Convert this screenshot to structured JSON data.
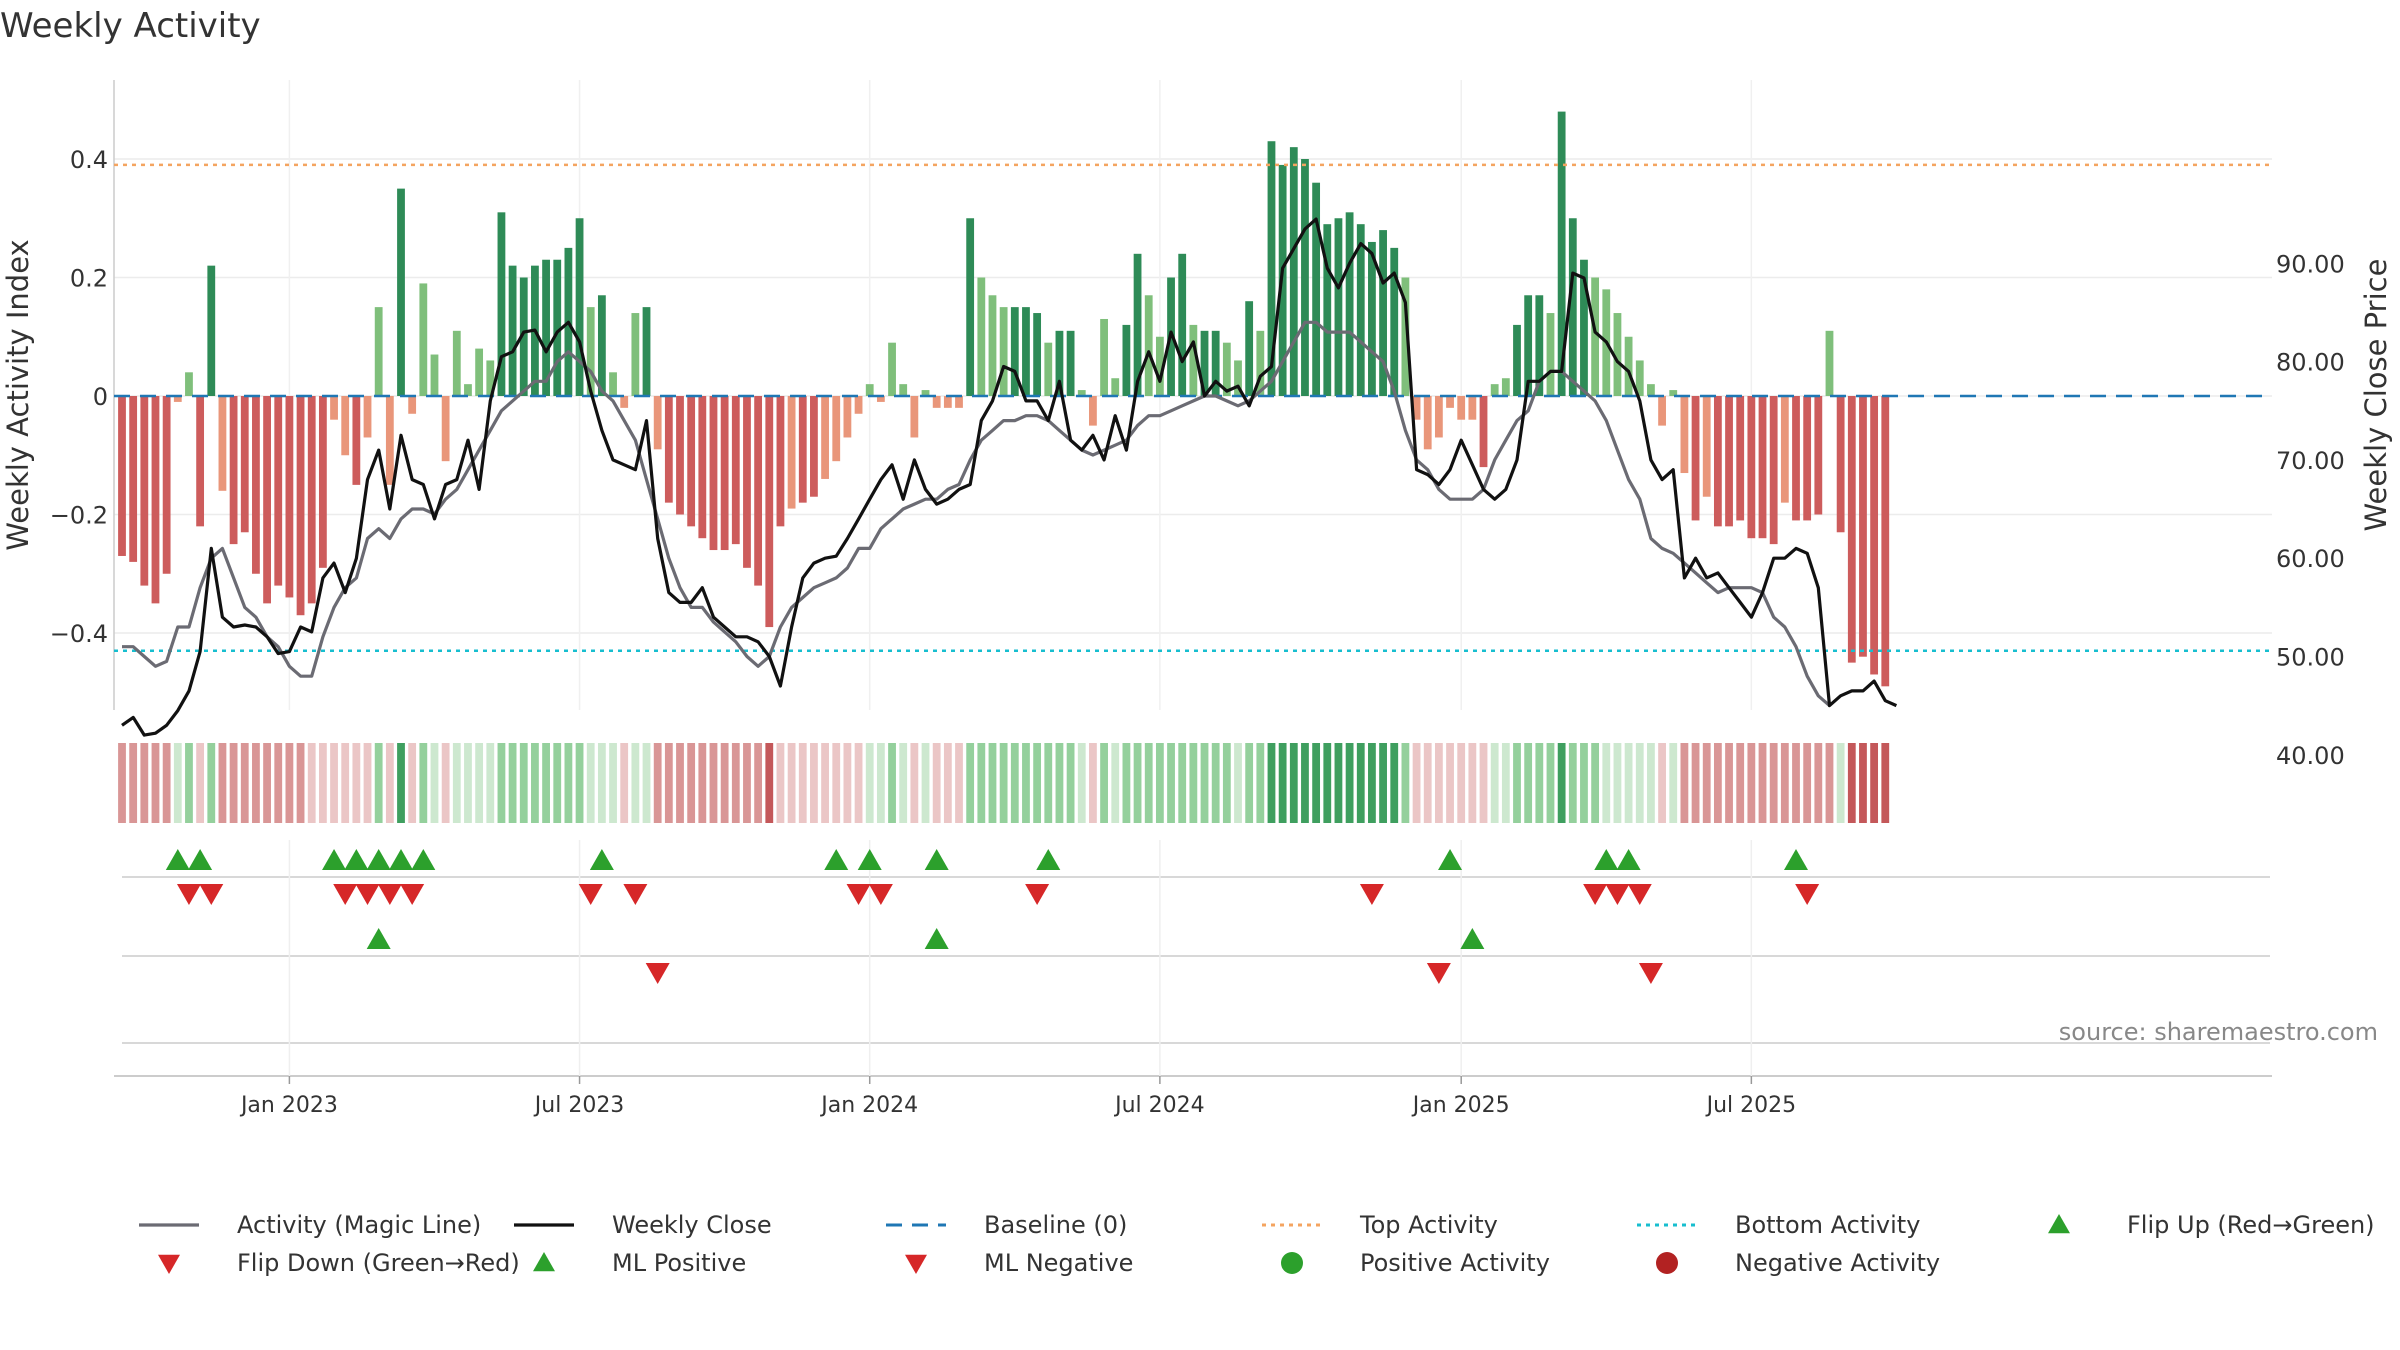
{
  "chart_data": {
    "type": "bar",
    "title": "Weekly Activity",
    "ylabel_left": "Weekly Activity Index",
    "ylabel_right": "Weekly Close Price",
    "source": "source: sharemaestro.com",
    "ylim_left": [
      -0.53,
      0.53
    ],
    "ylim_right": [
      36,
      96
    ],
    "yticks_left": [
      {
        "value": 0.4,
        "label": "0.4"
      },
      {
        "value": 0.2,
        "label": "0.2"
      },
      {
        "value": 0,
        "label": "0"
      },
      {
        "value": -0.2,
        "label": "−0.2"
      },
      {
        "value": -0.4,
        "label": "−0.4"
      }
    ],
    "yticks_right": [
      {
        "value": 90,
        "label": "90.00"
      },
      {
        "value": 80,
        "label": "80.00"
      },
      {
        "value": 70,
        "label": "70.00"
      },
      {
        "value": 60,
        "label": "60.00"
      },
      {
        "value": 50,
        "label": "50.00"
      },
      {
        "value": 40,
        "label": "40.00"
      }
    ],
    "xticks": [
      {
        "index": 15,
        "label": "Jan 2023"
      },
      {
        "index": 41,
        "label": "Jul 2023"
      },
      {
        "index": 67,
        "label": "Jan 2024"
      },
      {
        "index": 93,
        "label": "Jul 2024"
      },
      {
        "index": 120,
        "label": "Jan 2025"
      },
      {
        "index": 146,
        "label": "Jul 2025"
      }
    ],
    "top_activity": 0.39,
    "bottom_activity": -0.43,
    "colors": {
      "strong_green": "#2e8b57",
      "light_green": "#7fbf7b",
      "strong_red": "#cd5c5c",
      "light_red": "#e9967a",
      "magic_line": "#6b6b73",
      "close_line": "#111111",
      "baseline": "#1f77b4",
      "top_line": "#f4a460",
      "bottom_line": "#17becf",
      "up_marker": "#2ca02c",
      "down_marker": "#d62728"
    },
    "activity": [
      -0.27,
      -0.28,
      -0.32,
      -0.35,
      -0.3,
      -0.01,
      0.04,
      -0.22,
      0.22,
      -0.16,
      -0.25,
      -0.23,
      -0.3,
      -0.35,
      -0.32,
      -0.34,
      -0.37,
      -0.35,
      -0.29,
      -0.04,
      -0.1,
      -0.15,
      -0.07,
      0.15,
      -0.15,
      0.35,
      -0.03,
      0.19,
      0.07,
      -0.11,
      0.11,
      0.02,
      0.08,
      0.06,
      0.31,
      0.22,
      0.2,
      0.22,
      0.23,
      0.23,
      0.25,
      0.3,
      0.15,
      0.17,
      0.04,
      -0.02,
      0.14,
      0.15,
      -0.09,
      -0.18,
      -0.2,
      -0.22,
      -0.24,
      -0.26,
      -0.26,
      -0.25,
      -0.29,
      -0.32,
      -0.39,
      -0.22,
      -0.19,
      -0.18,
      -0.17,
      -0.14,
      -0.11,
      -0.07,
      -0.03,
      0.02,
      -0.01,
      0.09,
      0.02,
      -0.07,
      0.01,
      -0.02,
      -0.02,
      -0.02,
      0.3,
      0.2,
      0.17,
      0.15,
      0.15,
      0.15,
      0.14,
      0.09,
      0.11,
      0.11,
      0.01,
      -0.05,
      0.13,
      0.03,
      0.12,
      0.24,
      0.17,
      0.1,
      0.2,
      0.24,
      0.12,
      0.11,
      0.11,
      0.09,
      0.06,
      0.16,
      0.11,
      0.43,
      0.39,
      0.42,
      0.4,
      0.36,
      0.29,
      0.3,
      0.31,
      0.29,
      0.26,
      0.28,
      0.25,
      0.2,
      -0.04,
      -0.09,
      -0.07,
      -0.02,
      -0.04,
      -0.04,
      -0.12,
      0.02,
      0.03,
      0.12,
      0.17,
      0.17,
      0.14,
      0.48,
      0.3,
      0.23,
      0.2,
      0.18,
      0.14,
      0.1,
      0.06,
      0.02,
      -0.05,
      0.01,
      -0.13,
      -0.21,
      -0.17,
      -0.22,
      -0.22,
      -0.21,
      -0.24,
      -0.24,
      -0.25,
      -0.18,
      -0.21,
      -0.21,
      -0.2,
      0.11,
      -0.23,
      -0.45,
      -0.44,
      -0.47,
      -0.49
    ],
    "close": [
      43,
      43.8,
      42,
      42.2,
      43,
      44.5,
      46.5,
      50.5,
      61,
      54,
      53,
      53.2,
      53,
      52,
      50.3,
      50.5,
      53,
      52.5,
      58,
      59.5,
      56.5,
      60,
      68,
      71,
      65,
      72.5,
      68,
      67.5,
      64,
      67.5,
      68,
      72,
      67,
      76,
      80.5,
      81,
      83,
      83.2,
      81,
      83,
      84,
      82,
      77,
      73,
      70,
      69.5,
      69,
      74,
      62,
      56.5,
      55.5,
      55.5,
      57,
      54,
      53,
      52,
      52,
      51.5,
      50,
      47,
      53,
      58,
      59.5,
      60,
      60.2,
      62,
      64,
      66,
      68,
      69.5,
      66,
      70,
      67,
      65.5,
      66,
      67,
      67.5,
      74,
      76,
      79.5,
      79,
      76,
      76,
      74,
      78,
      72,
      71,
      72.5,
      70,
      74.5,
      71,
      78,
      81,
      78,
      83,
      80,
      82,
      76.5,
      78,
      77,
      77.5,
      75.5,
      78.5,
      79.5,
      89.5,
      91.5,
      93.5,
      94.5,
      89.5,
      87.5,
      90,
      92,
      91,
      88,
      89,
      86,
      69,
      68.5,
      67.5,
      69,
      72,
      69.5,
      67,
      66,
      67,
      70,
      78,
      78,
      79,
      79,
      89,
      88.5,
      83,
      82,
      80,
      79,
      76,
      70,
      68,
      69,
      58,
      60,
      58,
      58.5,
      57,
      55.5,
      54,
      56.5,
      60,
      60,
      61,
      60.5,
      57,
      45,
      46,
      46.5,
      46.5,
      47.5,
      45.5,
      45
    ],
    "magic_line": [
      51,
      51,
      50,
      49,
      49.5,
      53,
      53,
      57,
      60,
      61,
      58,
      55,
      54,
      52,
      51,
      49,
      48,
      48,
      52,
      55,
      57,
      58,
      62,
      63,
      62,
      64,
      65,
      65,
      64.5,
      66,
      67,
      69,
      71,
      73,
      75,
      76,
      77,
      78,
      78,
      80,
      81,
      80,
      79,
      77,
      76,
      74,
      72,
      68,
      64,
      60,
      57,
      55,
      55,
      53.5,
      52.5,
      51.5,
      50,
      49,
      50,
      53,
      55,
      56,
      57,
      57.5,
      58,
      59,
      61,
      61,
      63,
      64,
      65,
      65.5,
      66,
      66,
      67,
      67.5,
      70,
      72,
      73,
      74,
      74,
      74.5,
      74.5,
      74,
      73,
      72,
      71,
      70.5,
      71,
      71.5,
      72,
      73.5,
      74.5,
      74.5,
      75,
      75.5,
      76,
      76.5,
      76.5,
      76,
      75.5,
      76,
      77,
      78,
      80,
      82,
      84,
      84,
      83,
      83,
      83,
      82,
      81,
      80,
      77,
      73,
      70,
      69,
      67,
      66,
      66,
      66,
      67,
      70,
      72,
      74,
      75,
      78,
      79,
      79,
      78,
      77,
      76,
      74,
      71,
      68,
      66,
      62,
      61,
      60.5,
      59.5,
      58.5,
      57.5,
      56.5,
      57,
      57,
      57,
      56.5,
      54,
      53,
      51,
      48,
      46,
      45
    ],
    "heat_strip": [
      "R2",
      "R2",
      "R2",
      "R2",
      "R2",
      "G1",
      "G2",
      "R1",
      "G2",
      "R2",
      "R2",
      "R2",
      "R2",
      "R2",
      "R2",
      "R2",
      "R2",
      "R1",
      "R1",
      "R1",
      "R1",
      "R1",
      "R1",
      "G2",
      "R1",
      "G3",
      "R1",
      "G2",
      "G1",
      "R1",
      "G1",
      "G1",
      "G1",
      "G1",
      "G2",
      "G2",
      "G2",
      "G2",
      "G2",
      "G2",
      "G2",
      "G2",
      "G1",
      "G1",
      "G1",
      "R1",
      "G1",
      "G1",
      "R2",
      "R2",
      "R2",
      "R2",
      "R2",
      "R2",
      "R2",
      "R2",
      "R2",
      "R2",
      "R3",
      "R1",
      "R1",
      "R1",
      "R1",
      "R1",
      "R1",
      "R1",
      "R1",
      "G1",
      "G1",
      "G2",
      "G1",
      "R1",
      "G1",
      "R1",
      "R1",
      "R1",
      "G2",
      "G2",
      "G2",
      "G2",
      "G2",
      "G2",
      "G2",
      "G2",
      "G2",
      "G2",
      "G1",
      "R1",
      "G2",
      "G1",
      "G2",
      "G2",
      "G2",
      "G2",
      "G2",
      "G2",
      "G2",
      "G2",
      "G2",
      "G2",
      "G1",
      "G2",
      "G2",
      "G3",
      "G3",
      "G3",
      "G3",
      "G3",
      "G3",
      "G3",
      "G3",
      "G3",
      "G3",
      "G3",
      "G3",
      "G2",
      "R1",
      "R1",
      "R1",
      "R1",
      "R1",
      "R1",
      "R1",
      "G1",
      "G1",
      "G2",
      "G2",
      "G2",
      "G2",
      "G3",
      "G2",
      "G2",
      "G2",
      "G1",
      "G1",
      "G1",
      "G1",
      "G1",
      "R1",
      "G1",
      "R2",
      "R2",
      "R2",
      "R2",
      "R2",
      "R2",
      "R2",
      "R2",
      "R2",
      "R2",
      "R2",
      "R2",
      "R2",
      "R2",
      "G1",
      "R3",
      "R3",
      "R3",
      "R3"
    ],
    "flip_up": [
      5,
      7,
      19,
      21,
      23,
      25,
      27,
      43,
      64,
      67,
      73,
      83,
      119,
      133,
      135,
      150
    ],
    "flip_down": [
      6,
      8,
      20,
      22,
      24,
      26,
      42,
      46,
      66,
      68,
      82,
      112,
      132,
      134,
      136,
      151
    ],
    "ml_positive": [
      23,
      73,
      121
    ],
    "ml_negative": [
      48,
      118,
      137
    ],
    "legend": [
      {
        "key": "magic_line",
        "label": "Activity (Magic Line)"
      },
      {
        "key": "close",
        "label": "Weekly Close"
      },
      {
        "key": "baseline",
        "label": "Baseline (0)"
      },
      {
        "key": "top",
        "label": "Top Activity"
      },
      {
        "key": "bottom",
        "label": "Bottom Activity"
      },
      {
        "key": "flip_up",
        "label": "Flip Up (Red→Green)"
      },
      {
        "key": "flip_down",
        "label": "Flip Down (Green→Red)"
      },
      {
        "key": "ml_positive",
        "label": "ML Positive"
      },
      {
        "key": "ml_negative",
        "label": "ML Negative"
      },
      {
        "key": "positive_activity",
        "label": "Positive Activity"
      },
      {
        "key": "negative_activity",
        "label": "Negative Activity"
      }
    ]
  }
}
